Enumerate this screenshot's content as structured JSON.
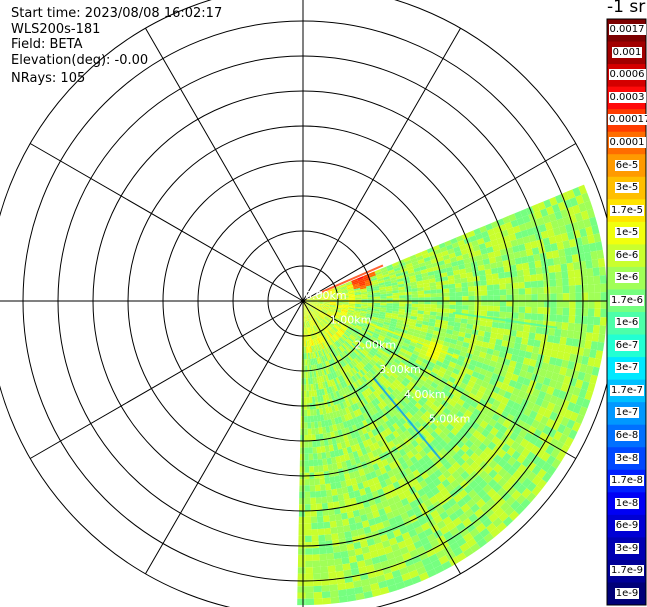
{
  "info": {
    "start_time": "Start time: 2023/08/08 16:02:17",
    "instrument": "WLS200s-181",
    "field": "Field: BETA",
    "elevation": "Elevation(deg): -0.00",
    "nrays": "NRays: 105"
  },
  "chart_data": {
    "type": "heatmap",
    "projection": "polar-ppi",
    "title": "",
    "range_rings_km": [
      1,
      2,
      3,
      4,
      5,
      6,
      7,
      8,
      9
    ],
    "ring_labels": [
      {
        "ring_km": 0,
        "text": "0.00km"
      },
      {
        "ring_km": 1,
        "text": "1.00km"
      },
      {
        "ring_km": 2,
        "text": "2.00km"
      },
      {
        "ring_km": 3,
        "text": "3.00km"
      },
      {
        "ring_km": 4,
        "text": "4.00km"
      },
      {
        "ring_km": 5,
        "text": "5.00km"
      }
    ],
    "radial_spokes_deg": [
      0,
      30,
      60,
      90,
      120,
      150,
      180,
      210,
      240,
      270,
      300,
      330
    ],
    "scan_sector_deg": [
      67.5,
      180
    ],
    "max_range_km": 8.6,
    "background_level": "3e-6",
    "features": [
      {
        "azimuth_deg": 66,
        "range_km": 1.7,
        "level": "0.0003"
      },
      {
        "azimuth_deg": 96,
        "range_km": 6.5,
        "level": "1.7e-6"
      },
      {
        "azimuth_deg": 110,
        "range_km": 3.9,
        "level": "1.7e-5"
      },
      {
        "azimuth_deg": 139,
        "range_km": 5.2,
        "level": "1.7e-7"
      }
    ],
    "colorbar": {
      "unit_label": "-1 sr",
      "ticks": [
        "0.0017",
        "0.001",
        "0.0006",
        "0.0003",
        "0.00017",
        "0.0001",
        "6e-5",
        "3e-5",
        "1.7e-5",
        "1e-5",
        "6e-6",
        "3e-6",
        "1.7e-6",
        "1e-6",
        "6e-7",
        "3e-7",
        "1.7e-7",
        "1e-7",
        "6e-8",
        "3e-8",
        "1.7e-8",
        "1e-8",
        "6e-9",
        "3e-9",
        "1.7e-9",
        "1e-9"
      ],
      "colors": [
        "#7d0000",
        "#a10000",
        "#d40000",
        "#ff0a0a",
        "#ff3c00",
        "#ff6d00",
        "#ff9a00",
        "#ffbf00",
        "#ffe300",
        "#f2ff0d",
        "#c9ff2e",
        "#a0ff57",
        "#76ff80",
        "#4cffa9",
        "#22ffd3",
        "#00e8ff",
        "#00c0ff",
        "#0098ff",
        "#0070ff",
        "#0048ff",
        "#0020ff",
        "#0000f5",
        "#0000d4",
        "#0000b3",
        "#000096",
        "#000078"
      ]
    }
  }
}
